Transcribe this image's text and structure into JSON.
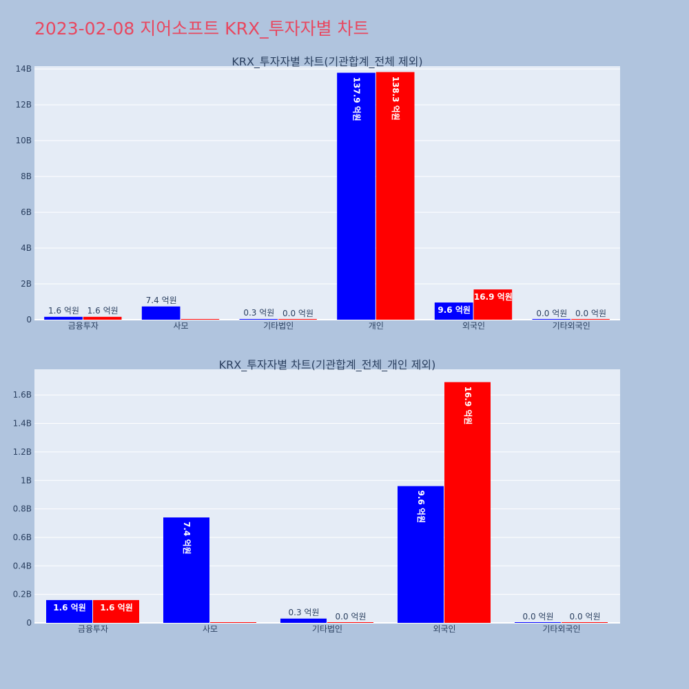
{
  "page": {
    "title": "2023-02-08 지어소프트 KRX_투자자별 차트",
    "background": "#b0c4de",
    "plot_background": "#e5ecf6",
    "title_color": "#e8475f"
  },
  "chart_data": [
    {
      "type": "bar",
      "title": "KRX_투자자별 차트(기관합계_전체 제외)",
      "categories": [
        "금융투자",
        "사모",
        "기타법인",
        "개인",
        "외국인",
        "기타외국인"
      ],
      "series": [
        {
          "color": "#0000ff",
          "values": [
            160000000,
            740000000,
            30000000,
            13790000000,
            960000000,
            0
          ],
          "labels": [
            "1.6 억원",
            "7.4 억원",
            "0.3 억원",
            "137.9 억원",
            "9.6 억원",
            "0.0 억원"
          ]
        },
        {
          "color": "#ff0000",
          "values": [
            160000000,
            0,
            0,
            13830000000,
            1690000000,
            0
          ],
          "labels": [
            "1.6 억원",
            "",
            "0.0 억원",
            "138.3 억원",
            "16.9 억원",
            "0.0 억원"
          ]
        }
      ],
      "yticks": [
        0,
        2000000000,
        4000000000,
        6000000000,
        8000000000,
        10000000000,
        12000000000,
        14000000000
      ],
      "ytick_labels": [
        "0",
        "2B",
        "4B",
        "6B",
        "8B",
        "10B",
        "12B",
        "14B"
      ],
      "ylim": [
        0,
        14160000000
      ],
      "grid": true
    },
    {
      "type": "bar",
      "title": "KRX_투자자별 차트(기관합계_전체_개인 제외)",
      "categories": [
        "금융투자",
        "사모",
        "기타법인",
        "외국인",
        "기타외국인"
      ],
      "series": [
        {
          "color": "#0000ff",
          "values": [
            160000000,
            740000000,
            30000000,
            960000000,
            0
          ],
          "labels": [
            "1.6 억원",
            "7.4 억원",
            "0.3 억원",
            "9.6 억원",
            "0.0 억원"
          ]
        },
        {
          "color": "#ff0000",
          "values": [
            160000000,
            0,
            0,
            1690000000,
            0
          ],
          "labels": [
            "1.6 억원",
            "",
            "0.0 억원",
            "16.9 억원",
            "0.0 억원"
          ]
        }
      ],
      "yticks": [
        0,
        200000000,
        400000000,
        600000000,
        800000000,
        1000000000,
        1200000000,
        1400000000,
        1600000000
      ],
      "ytick_labels": [
        "0",
        "0.2B",
        "0.4B",
        "0.6B",
        "0.8B",
        "1B",
        "1.2B",
        "1.4B",
        "1.6B"
      ],
      "ylim": [
        0,
        1780000000
      ],
      "grid": true
    }
  ]
}
